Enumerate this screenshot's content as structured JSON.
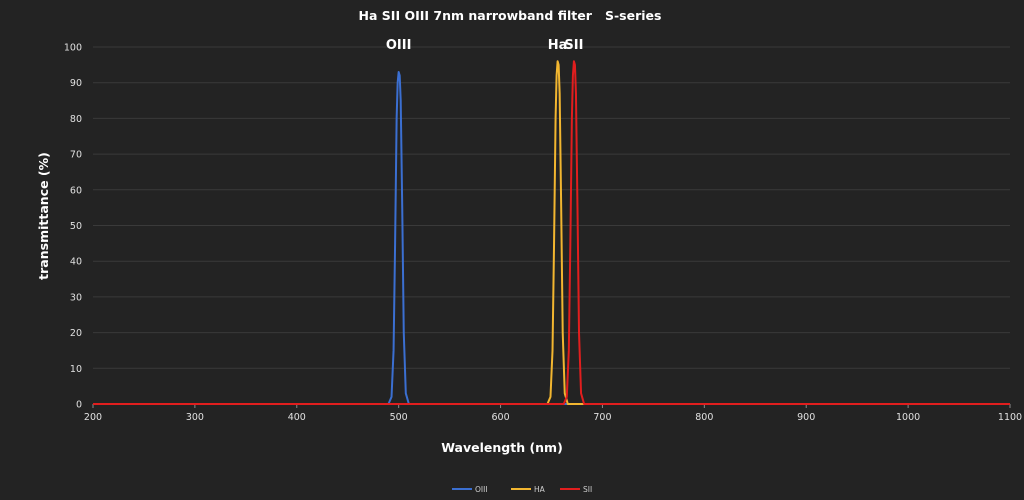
{
  "chart_data": {
    "type": "line",
    "title": "Ha SII OIII 7nm narrowband filter   S-series",
    "xlabel": "Wavelength (nm)",
    "ylabel": "transmittance (%)",
    "xlim": [
      200,
      1100
    ],
    "ylim": [
      0,
      100
    ],
    "x_ticks": [
      200,
      300,
      400,
      500,
      600,
      700,
      800,
      900,
      1000,
      1100
    ],
    "y_ticks": [
      0,
      10,
      20,
      30,
      40,
      50,
      60,
      70,
      80,
      90,
      100
    ],
    "grid": "horizontal",
    "legend_position": "bottom",
    "annotations": [
      {
        "text": "OIII",
        "x": 500,
        "y": 100
      },
      {
        "text": "Ha",
        "x": 656,
        "y": 100
      },
      {
        "text": "SII",
        "x": 672,
        "y": 100
      }
    ],
    "series": [
      {
        "name": "OIII",
        "color": "#3b6fd1",
        "x": [
          200,
          490,
          493,
          495,
          496.5,
          498,
          499,
          500,
          501,
          502,
          503.5,
          505,
          507,
          510,
          1100
        ],
        "y": [
          0,
          0,
          2,
          15,
          45,
          80,
          90,
          93,
          92,
          85,
          55,
          20,
          3,
          0,
          0
        ]
      },
      {
        "name": "HA",
        "color": "#f2b630",
        "x": [
          200,
          646,
          649,
          651,
          652.5,
          654,
          655,
          656,
          657,
          658,
          659.5,
          661,
          663,
          666,
          1100
        ],
        "y": [
          0,
          0,
          2,
          15,
          45,
          80,
          92,
          96,
          95,
          87,
          55,
          20,
          3,
          0,
          0
        ]
      },
      {
        "name": "SII",
        "color": "#e11e1e",
        "x": [
          200,
          662,
          665,
          667,
          668.5,
          670,
          671,
          672,
          673,
          674,
          675.5,
          677,
          679,
          682,
          1100
        ],
        "y": [
          0,
          0,
          2,
          15,
          45,
          80,
          92,
          96,
          95,
          87,
          55,
          20,
          3,
          0,
          0
        ]
      }
    ]
  }
}
